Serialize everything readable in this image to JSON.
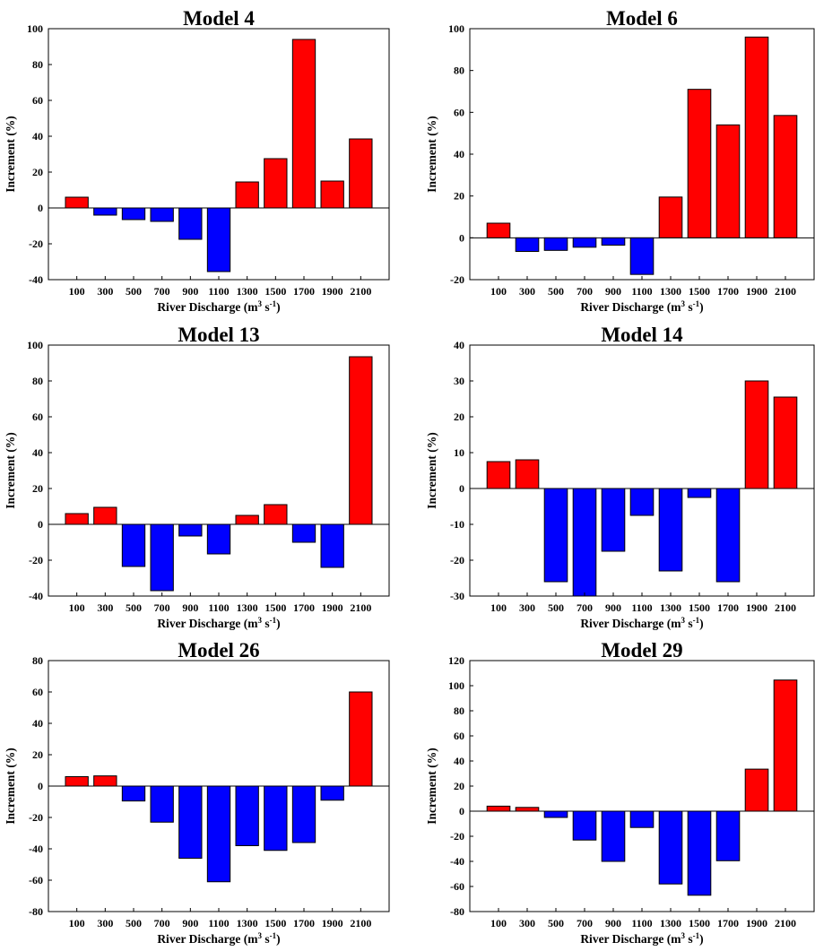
{
  "colors": {
    "positive": "#ff0000",
    "negative": "#0000ff"
  },
  "chart_data": [
    {
      "type": "bar",
      "title": "Model 4",
      "xlabel": "River Discharge (m3 s-1)",
      "ylabel": "Increment (%)",
      "categories": [
        "100",
        "300",
        "500",
        "700",
        "900",
        "1100",
        "1300",
        "1500",
        "1700",
        "1900",
        "2100"
      ],
      "values": [
        6,
        -4,
        -6.5,
        -7.5,
        -17.5,
        -35.5,
        14.5,
        27.5,
        94,
        15,
        38.5
      ],
      "ylim": [
        -40,
        100
      ],
      "yticks": [
        -40,
        -20,
        0,
        20,
        40,
        60,
        80,
        100
      ]
    },
    {
      "type": "bar",
      "title": "Model 6",
      "xlabel": "River Discharge (m3 s-1)",
      "ylabel": "Increment (%)",
      "categories": [
        "100",
        "300",
        "500",
        "700",
        "900",
        "1100",
        "1300",
        "1500",
        "1700",
        "1900",
        "2100"
      ],
      "values": [
        7,
        -6.5,
        -6,
        -4.5,
        -3.5,
        -17.5,
        19.5,
        71,
        54,
        96,
        58.5
      ],
      "ylim": [
        -20,
        100
      ],
      "yticks": [
        -20,
        0,
        20,
        40,
        60,
        80,
        100
      ]
    },
    {
      "type": "bar",
      "title": "Model 13",
      "xlabel": "River Discharge (m3 s-1)",
      "ylabel": "Increment (%)",
      "categories": [
        "100",
        "300",
        "500",
        "700",
        "900",
        "1100",
        "1300",
        "1500",
        "1700",
        "1900",
        "2100"
      ],
      "values": [
        6,
        9.5,
        -23.5,
        -37,
        -6.5,
        -16.5,
        5,
        11,
        -10,
        -24,
        93.5
      ],
      "ylim": [
        -40,
        100
      ],
      "yticks": [
        -40,
        -20,
        0,
        20,
        40,
        60,
        80,
        100
      ]
    },
    {
      "type": "bar",
      "title": "Model 14",
      "xlabel": "River Discharge (m3 s-1)",
      "ylabel": "Increment (%)",
      "categories": [
        "100",
        "300",
        "500",
        "700",
        "900",
        "1100",
        "1300",
        "1500",
        "1700",
        "1900",
        "2100"
      ],
      "values": [
        7.5,
        8,
        -26,
        -30,
        -17.5,
        -7.5,
        -23,
        -2.5,
        -26,
        30,
        25.5
      ],
      "ylim": [
        -30,
        40
      ],
      "yticks": [
        -30,
        -20,
        -10,
        0,
        10,
        20,
        30,
        40
      ]
    },
    {
      "type": "bar",
      "title": "Model 26",
      "xlabel": "River Discharge (m3 s-1)",
      "ylabel": "Increment (%)",
      "categories": [
        "100",
        "300",
        "500",
        "700",
        "900",
        "1100",
        "1300",
        "1500",
        "1700",
        "1900",
        "2100"
      ],
      "values": [
        6,
        6.5,
        -9.5,
        -23,
        -46,
        -61,
        -38,
        -41,
        -36,
        -9,
        60
      ],
      "ylim": [
        -80,
        80
      ],
      "yticks": [
        -80,
        -60,
        -40,
        -20,
        0,
        20,
        40,
        60,
        80
      ]
    },
    {
      "type": "bar",
      "title": "Model 29",
      "xlabel": "River Discharge (m3 s-1)",
      "ylabel": "Increment (%)",
      "categories": [
        "100",
        "300",
        "500",
        "700",
        "900",
        "1100",
        "1300",
        "1500",
        "1700",
        "1900",
        "2100"
      ],
      "values": [
        4,
        3,
        -5,
        -23,
        -40,
        -13,
        -58,
        -67,
        -39.5,
        33.5,
        104.5
      ],
      "ylim": [
        -80,
        120
      ],
      "yticks": [
        -80,
        -60,
        -40,
        -20,
        0,
        20,
        40,
        60,
        80,
        100,
        120
      ]
    }
  ]
}
